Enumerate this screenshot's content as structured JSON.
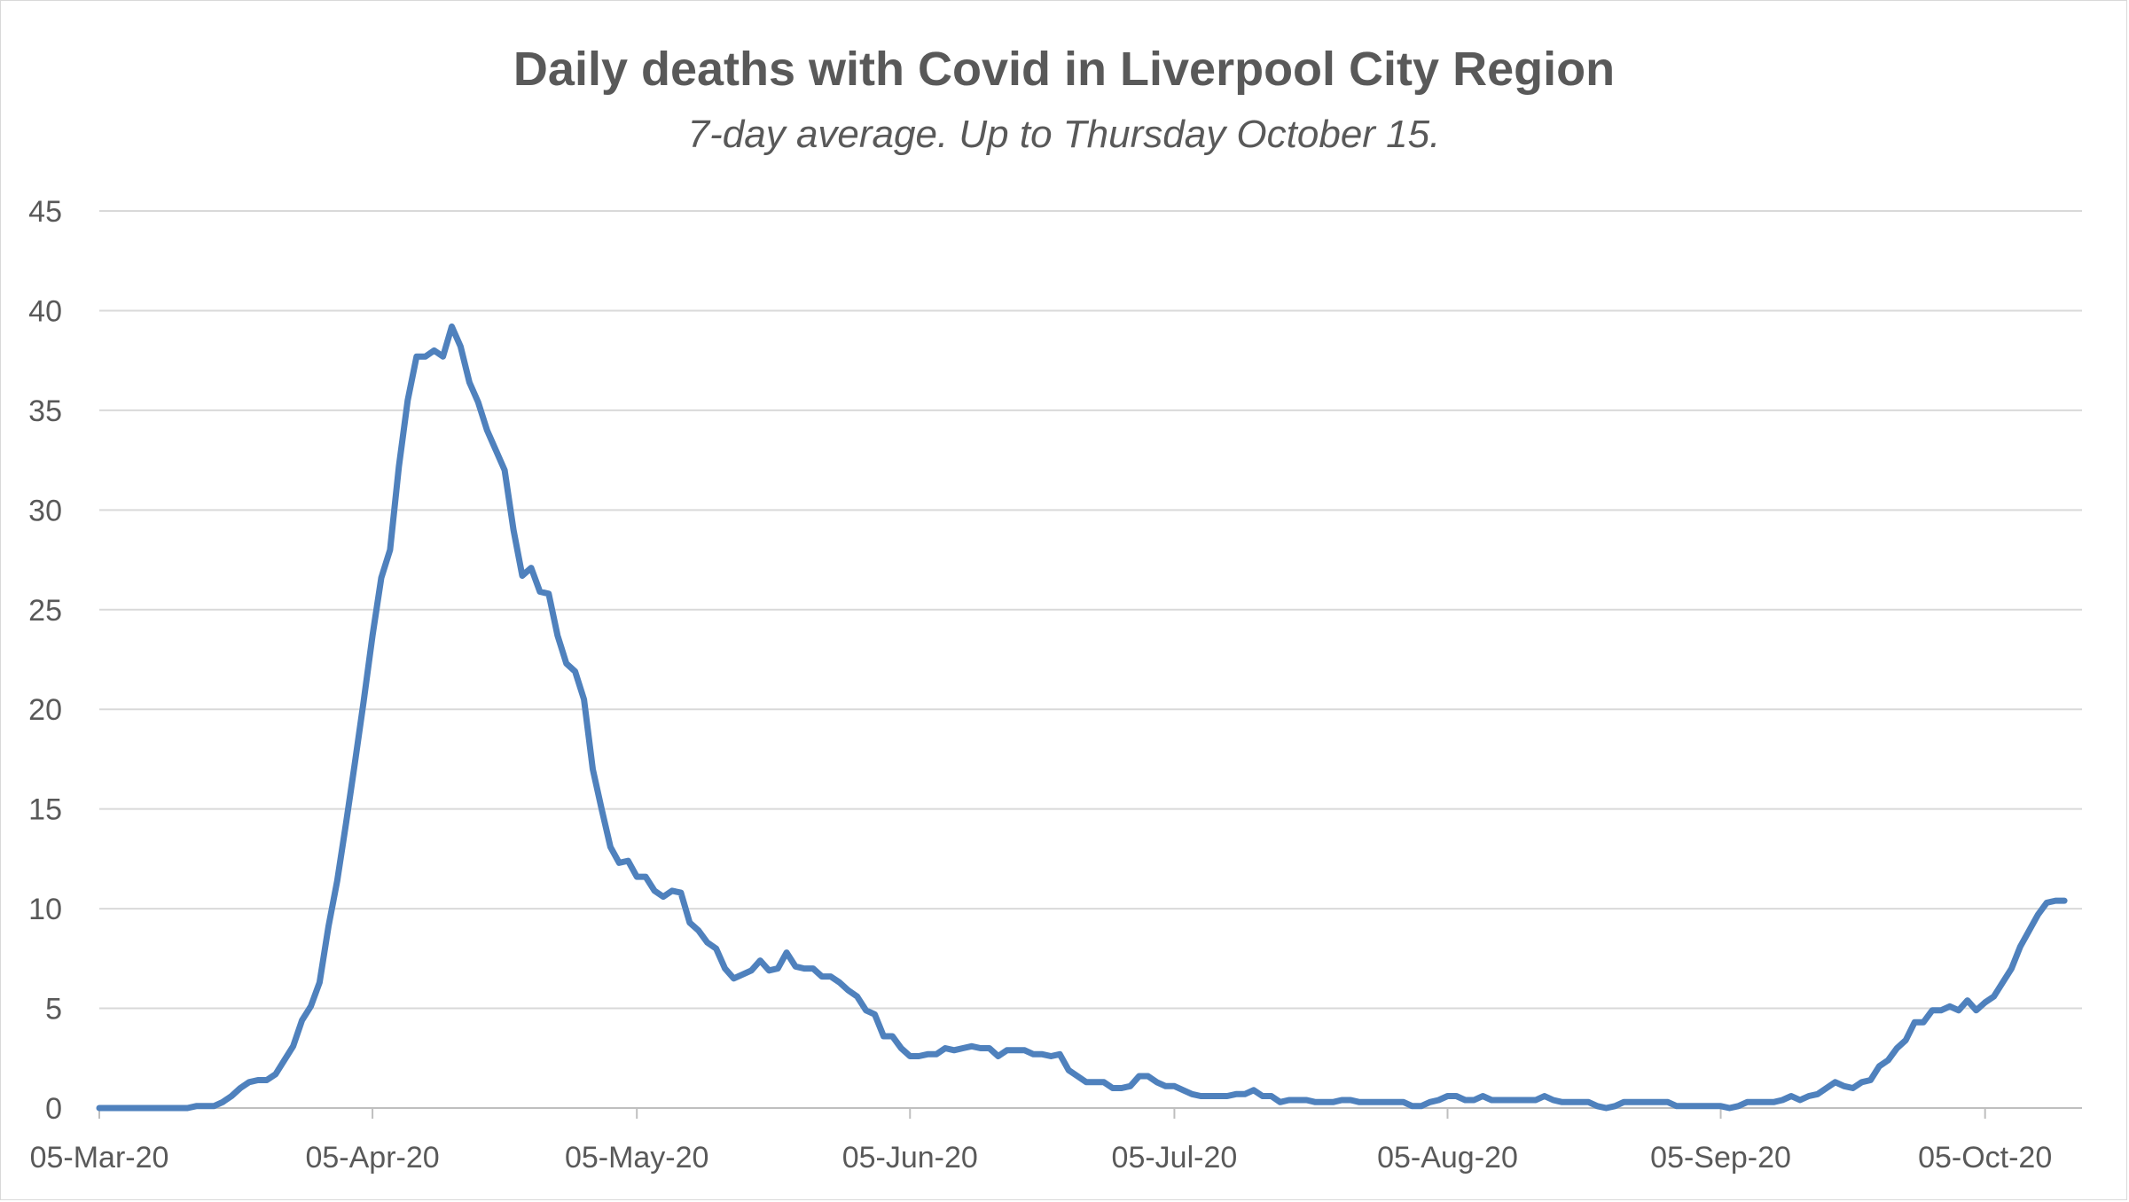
{
  "chart_data": {
    "type": "line",
    "title": "Daily deaths with Covid in Liverpool City Region",
    "subtitle": "7-day average. Up to Thursday October 15.",
    "xlabel": "",
    "ylabel": "",
    "ylim": [
      0,
      45
    ],
    "yticks": [
      "0",
      "5",
      "10",
      "15",
      "20",
      "25",
      "30",
      "35",
      "40",
      "45"
    ],
    "xticks": [
      "05-Mar-20",
      "05-Apr-20",
      "05-May-20",
      "05-Jun-20",
      "05-Jul-20",
      "05-Aug-20",
      "05-Sep-20",
      "05-Oct-20"
    ],
    "xtick_days": [
      0,
      31,
      61,
      92,
      122,
      153,
      184,
      214
    ],
    "x_range_days": [
      0,
      225
    ],
    "grid": true,
    "legend": "none",
    "color": "#4f81bd",
    "series": [
      {
        "name": "7-day average",
        "x_start": "05-Mar-20",
        "points": [
          [
            0,
            0
          ],
          [
            4,
            0
          ],
          [
            8,
            0
          ],
          [
            10,
            0
          ],
          [
            11,
            0.1
          ],
          [
            13,
            0.1
          ],
          [
            14,
            0.3
          ],
          [
            15,
            0.6
          ],
          [
            16,
            1.0
          ],
          [
            17,
            1.3
          ],
          [
            18,
            1.4
          ],
          [
            19,
            1.4
          ],
          [
            20,
            1.7
          ],
          [
            21,
            2.4
          ],
          [
            22,
            3.1
          ],
          [
            23,
            4.4
          ],
          [
            24,
            5.1
          ],
          [
            25,
            6.3
          ],
          [
            26,
            9.1
          ],
          [
            27,
            11.4
          ],
          [
            28,
            14.3
          ],
          [
            29,
            17.3
          ],
          [
            30,
            20.4
          ],
          [
            31,
            23.7
          ],
          [
            32,
            26.6
          ],
          [
            33,
            28.0
          ],
          [
            34,
            32.2
          ],
          [
            35,
            35.5
          ],
          [
            36,
            37.7
          ],
          [
            37,
            37.7
          ],
          [
            38,
            38.0
          ],
          [
            39,
            37.7
          ],
          [
            40,
            39.2
          ],
          [
            41,
            38.2
          ],
          [
            42,
            36.4
          ],
          [
            43,
            35.4
          ],
          [
            44,
            34.0
          ],
          [
            45,
            33.0
          ],
          [
            46,
            32.0
          ],
          [
            47,
            29.0
          ],
          [
            48,
            26.7
          ],
          [
            49,
            27.1
          ],
          [
            50,
            25.9
          ],
          [
            51,
            25.8
          ],
          [
            52,
            23.7
          ],
          [
            53,
            22.3
          ],
          [
            54,
            21.9
          ],
          [
            55,
            20.5
          ],
          [
            56,
            17.0
          ],
          [
            57,
            15.0
          ],
          [
            58,
            13.1
          ],
          [
            59,
            12.3
          ],
          [
            60,
            12.4
          ],
          [
            61,
            11.6
          ],
          [
            62,
            11.6
          ],
          [
            63,
            10.9
          ],
          [
            64,
            10.6
          ],
          [
            65,
            10.9
          ],
          [
            66,
            10.8
          ],
          [
            67,
            9.3
          ],
          [
            68,
            8.9
          ],
          [
            69,
            8.3
          ],
          [
            70,
            8.0
          ],
          [
            71,
            7.0
          ],
          [
            72,
            6.5
          ],
          [
            73,
            6.7
          ],
          [
            74,
            6.9
          ],
          [
            75,
            7.4
          ],
          [
            76,
            6.9
          ],
          [
            77,
            7.0
          ],
          [
            78,
            7.8
          ],
          [
            79,
            7.1
          ],
          [
            80,
            7.0
          ],
          [
            81,
            7.0
          ],
          [
            82,
            6.6
          ],
          [
            83,
            6.6
          ],
          [
            84,
            6.3
          ],
          [
            85,
            5.9
          ],
          [
            86,
            5.6
          ],
          [
            87,
            4.9
          ],
          [
            88,
            4.7
          ],
          [
            89,
            3.6
          ],
          [
            90,
            3.6
          ],
          [
            91,
            3.0
          ],
          [
            92,
            2.6
          ],
          [
            93,
            2.6
          ],
          [
            94,
            2.7
          ],
          [
            95,
            2.7
          ],
          [
            96,
            3.0
          ],
          [
            97,
            2.9
          ],
          [
            98,
            3.0
          ],
          [
            99,
            3.1
          ],
          [
            100,
            3.0
          ],
          [
            101,
            3.0
          ],
          [
            102,
            2.6
          ],
          [
            103,
            2.9
          ],
          [
            104,
            2.9
          ],
          [
            105,
            2.9
          ],
          [
            106,
            2.7
          ],
          [
            107,
            2.7
          ],
          [
            108,
            2.6
          ],
          [
            109,
            2.7
          ],
          [
            110,
            1.9
          ],
          [
            111,
            1.6
          ],
          [
            112,
            1.3
          ],
          [
            113,
            1.3
          ],
          [
            114,
            1.3
          ],
          [
            115,
            1.0
          ],
          [
            116,
            1.0
          ],
          [
            117,
            1.1
          ],
          [
            118,
            1.6
          ],
          [
            119,
            1.6
          ],
          [
            120,
            1.3
          ],
          [
            121,
            1.1
          ],
          [
            122,
            1.1
          ],
          [
            123,
            0.9
          ],
          [
            124,
            0.7
          ],
          [
            125,
            0.6
          ],
          [
            126,
            0.6
          ],
          [
            127,
            0.6
          ],
          [
            128,
            0.6
          ],
          [
            129,
            0.7
          ],
          [
            130,
            0.7
          ],
          [
            131,
            0.9
          ],
          [
            132,
            0.6
          ],
          [
            133,
            0.6
          ],
          [
            134,
            0.3
          ],
          [
            135,
            0.4
          ],
          [
            136,
            0.4
          ],
          [
            137,
            0.4
          ],
          [
            138,
            0.3
          ],
          [
            139,
            0.3
          ],
          [
            140,
            0.3
          ],
          [
            141,
            0.4
          ],
          [
            142,
            0.4
          ],
          [
            143,
            0.3
          ],
          [
            144,
            0.3
          ],
          [
            146,
            0.3
          ],
          [
            148,
            0.3
          ],
          [
            149,
            0.1
          ],
          [
            150,
            0.1
          ],
          [
            151,
            0.3
          ],
          [
            152,
            0.4
          ],
          [
            153,
            0.6
          ],
          [
            154,
            0.6
          ],
          [
            155,
            0.4
          ],
          [
            156,
            0.4
          ],
          [
            157,
            0.6
          ],
          [
            158,
            0.4
          ],
          [
            160,
            0.4
          ],
          [
            162,
            0.4
          ],
          [
            163,
            0.4
          ],
          [
            164,
            0.6
          ],
          [
            165,
            0.4
          ],
          [
            166,
            0.3
          ],
          [
            168,
            0.3
          ],
          [
            169,
            0.3
          ],
          [
            170,
            0.1
          ],
          [
            171,
            0.0
          ],
          [
            172,
            0.1
          ],
          [
            173,
            0.3
          ],
          [
            175,
            0.3
          ],
          [
            177,
            0.3
          ],
          [
            178,
            0.3
          ],
          [
            179,
            0.1
          ],
          [
            181,
            0.1
          ],
          [
            183,
            0.1
          ],
          [
            184,
            0.1
          ],
          [
            185,
            0.0
          ],
          [
            186,
            0.1
          ],
          [
            187,
            0.3
          ],
          [
            189,
            0.3
          ],
          [
            190,
            0.3
          ],
          [
            191,
            0.4
          ],
          [
            192,
            0.6
          ],
          [
            193,
            0.4
          ],
          [
            194,
            0.6
          ],
          [
            195,
            0.7
          ],
          [
            196,
            1.0
          ],
          [
            197,
            1.3
          ],
          [
            198,
            1.1
          ],
          [
            199,
            1.0
          ],
          [
            200,
            1.3
          ],
          [
            201,
            1.4
          ],
          [
            202,
            2.1
          ],
          [
            203,
            2.4
          ],
          [
            204,
            3.0
          ],
          [
            205,
            3.4
          ],
          [
            206,
            4.3
          ],
          [
            207,
            4.3
          ],
          [
            208,
            4.9
          ],
          [
            209,
            4.9
          ],
          [
            210,
            5.1
          ],
          [
            211,
            4.9
          ],
          [
            212,
            5.4
          ],
          [
            213,
            4.9
          ],
          [
            214,
            5.3
          ],
          [
            215,
            5.6
          ],
          [
            216,
            6.3
          ],
          [
            217,
            7.0
          ],
          [
            218,
            8.1
          ],
          [
            219,
            8.9
          ],
          [
            220,
            9.7
          ],
          [
            221,
            10.3
          ],
          [
            222,
            10.4
          ],
          [
            223,
            10.4
          ]
        ]
      }
    ]
  }
}
